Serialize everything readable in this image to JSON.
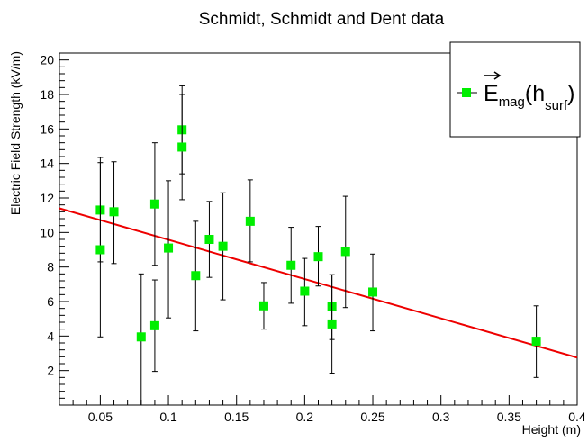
{
  "chart_data": {
    "type": "scatter",
    "title": "Schmidt, Schmidt and Dent data",
    "xlabel": "Height (m)",
    "ylabel": "Electric Field Strength (kV/m)",
    "xlim": [
      0.02,
      0.4
    ],
    "ylim": [
      0,
      20.4
    ],
    "xticks": [
      0.05,
      0.1,
      0.15,
      0.2,
      0.25,
      0.3,
      0.35,
      0.4
    ],
    "xtick_labels": [
      "0.05",
      "0.1",
      "0.15",
      "0.2",
      "0.25",
      "0.3",
      "0.35",
      "0.4"
    ],
    "yticks": [
      2,
      4,
      6,
      8,
      10,
      12,
      14,
      16,
      18,
      20
    ],
    "ytick_labels": [
      "2",
      "4",
      "6",
      "8",
      "10",
      "12",
      "14",
      "16",
      "18",
      "20"
    ],
    "grid": false,
    "legend": {
      "position": "top-right",
      "label_main": "E",
      "label_sub1": "mag",
      "label_mid": "(h",
      "label_sub2": "surf",
      "label_end": ")"
    },
    "series": [
      {
        "kind": "points",
        "color": "#00ee00",
        "x": [
          0.05,
          0.05,
          0.06,
          0.08,
          0.09,
          0.09,
          0.1,
          0.11,
          0.11,
          0.12,
          0.13,
          0.14,
          0.16,
          0.17,
          0.19,
          0.2,
          0.21,
          0.22,
          0.22,
          0.23,
          0.25,
          0.37
        ],
        "y": [
          11.3,
          9.0,
          11.2,
          3.95,
          4.6,
          11.65,
          9.1,
          15.95,
          14.95,
          7.5,
          9.6,
          9.2,
          10.65,
          5.75,
          8.1,
          6.6,
          8.6,
          5.7,
          4.7,
          8.9,
          6.55,
          3.7
        ],
        "ylow": [
          8.3,
          3.95,
          8.2,
          0,
          1.95,
          8.1,
          5.05,
          13.4,
          11.9,
          4.3,
          7.4,
          6.1,
          8.3,
          4.4,
          5.9,
          4.6,
          6.9,
          3.8,
          1.85,
          5.65,
          4.3,
          1.6
        ],
        "yhigh": [
          14.35,
          14.05,
          14.1,
          7.6,
          7.25,
          15.2,
          13.0,
          18.5,
          18.0,
          10.65,
          11.8,
          12.3,
          13.05,
          7.1,
          10.3,
          8.5,
          10.35,
          7.55,
          7.55,
          12.1,
          8.75,
          5.75
        ]
      },
      {
        "kind": "fit",
        "color": "#ee0000",
        "x": [
          0.02,
          0.4
        ],
        "y": [
          11.4,
          2.75
        ]
      }
    ]
  }
}
